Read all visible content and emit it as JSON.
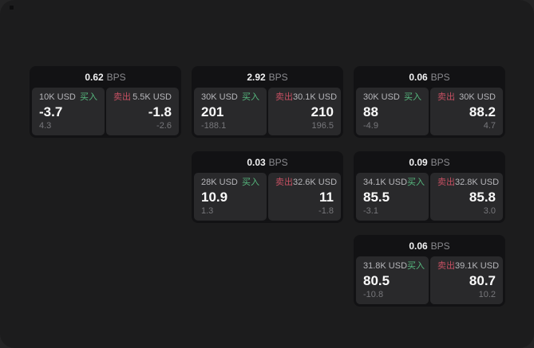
{
  "unit_label": "BPS",
  "buy_label": "买入",
  "sell_label": "卖出",
  "colors": {
    "page_bg": "#1c1c1d",
    "card_bg": "#121214",
    "panel_bg": "#29292b",
    "buy_green": "#56b87e",
    "sell_red": "#c55062"
  },
  "cards": [
    {
      "bps": "0.62",
      "buy": {
        "amount": "10K USD",
        "value": "-3.7",
        "sub": "4.3"
      },
      "sell": {
        "amount": "5.5K USD",
        "value": "-1.8",
        "sub": "-2.6"
      }
    },
    {
      "bps": "2.92",
      "buy": {
        "amount": "30K USD",
        "value": "201",
        "sub": "-188.1"
      },
      "sell": {
        "amount": "30.1K USD",
        "value": "210",
        "sub": "196.5"
      }
    },
    {
      "bps": "0.06",
      "buy": {
        "amount": "30K USD",
        "value": "88",
        "sub": "-4.9"
      },
      "sell": {
        "amount": "30K USD",
        "value": "88.2",
        "sub": "4.7"
      }
    },
    {
      "bps": "0.03",
      "buy": {
        "amount": "28K USD",
        "value": "10.9",
        "sub": "1.3"
      },
      "sell": {
        "amount": "32.6K USD",
        "value": "11",
        "sub": "-1.8"
      }
    },
    {
      "bps": "0.09",
      "buy": {
        "amount": "34.1K USD",
        "value": "85.5",
        "sub": "-3.1"
      },
      "sell": {
        "amount": "32.8K USD",
        "value": "85.8",
        "sub": "3.0"
      }
    },
    {
      "bps": "0.06",
      "buy": {
        "amount": "31.8K USD",
        "value": "80.5",
        "sub": "-10.8"
      },
      "sell": {
        "amount": "39.1K USD",
        "value": "80.7",
        "sub": "10.2"
      }
    }
  ]
}
